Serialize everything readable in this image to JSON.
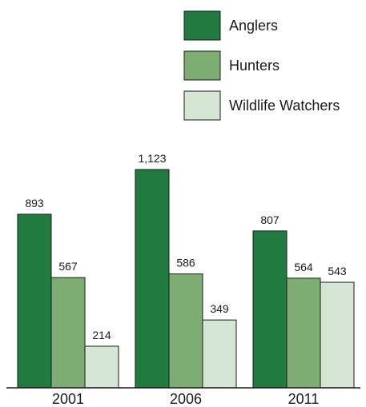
{
  "chart_data": {
    "type": "bar",
    "title": "",
    "xlabel": "",
    "ylabel": "",
    "categories": [
      "2001",
      "2006",
      "2011"
    ],
    "ylim": [
      0,
      1200
    ],
    "grid": false,
    "legend_position": "top-right",
    "series": [
      {
        "name": "Anglers",
        "color": "#217a3f",
        "values": [
          893,
          1123,
          807
        ],
        "labels": [
          "893",
          "1,123",
          "807"
        ]
      },
      {
        "name": "Hunters",
        "color": "#7ead74",
        "values": [
          567,
          586,
          564
        ],
        "labels": [
          "567",
          "586",
          "564"
        ]
      },
      {
        "name": "Wildlife Watchers",
        "color": "#d5e6d4",
        "values": [
          214,
          349,
          543
        ],
        "labels": [
          "214",
          "349",
          "543"
        ]
      }
    ]
  }
}
